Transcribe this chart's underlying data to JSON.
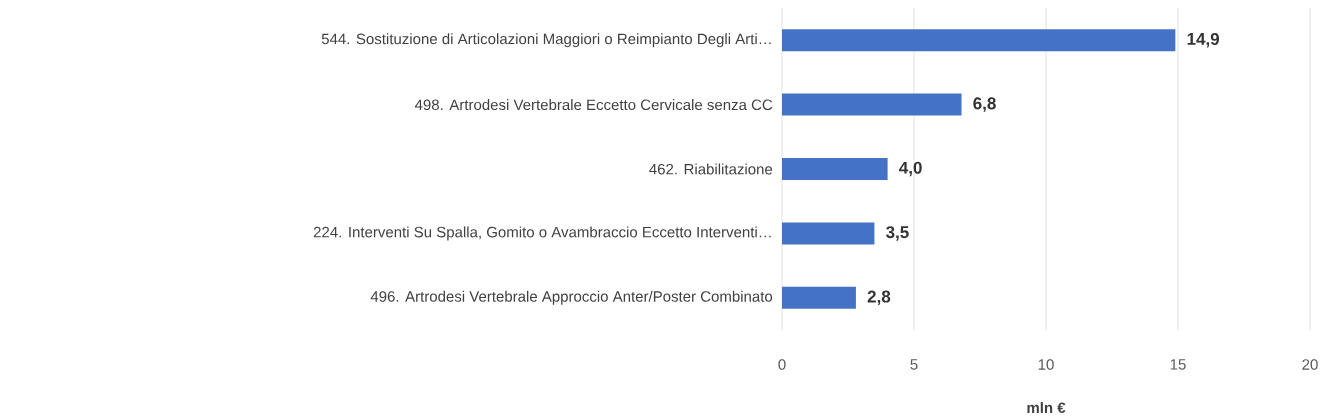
{
  "chart_data": {
    "type": "bar",
    "orientation": "horizontal",
    "xlabel": "mln €",
    "categories": [
      "544. Sostituzione di Articolazioni Maggiori o Reimpianto Degli Arti…",
      "498. Artrodesi Vertebrale Eccetto Cervicale senza CC",
      "462. Riabilitazione",
      "224. Interventi Su Spalla, Gomito o Avambraccio Eccetto Interventi…",
      "496. Artrodesi Vertebrale Approccio Anter/Poster Combinato"
    ],
    "values": [
      14.9,
      6.8,
      4.0,
      3.5,
      2.8
    ],
    "value_labels": [
      "14,9",
      "6,8",
      "4,0",
      "3,5",
      "2,8"
    ],
    "color": "#4472c4",
    "xlim": [
      0,
      20
    ],
    "xticks": [
      0,
      5,
      10,
      15,
      20
    ],
    "grid": "x"
  }
}
